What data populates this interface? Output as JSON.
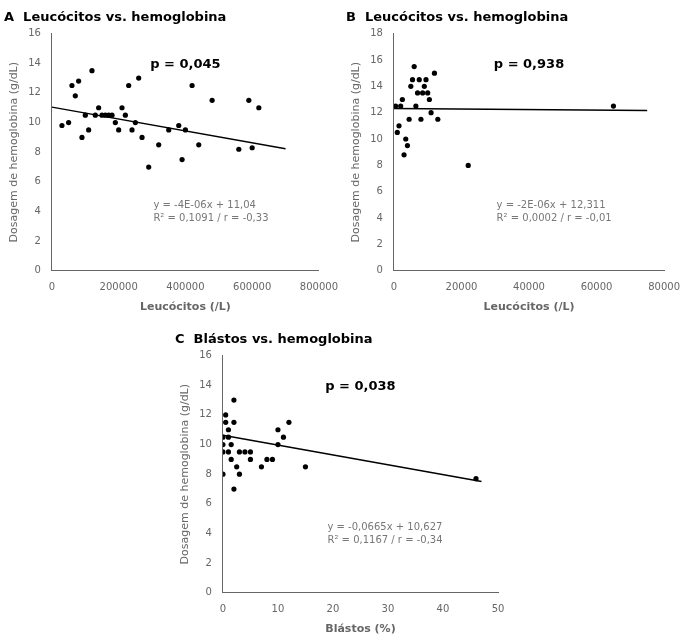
{
  "chart_data": [
    {
      "type": "scatter",
      "title": "A  Leucócitos vs. hemoglobina",
      "x_label": "Leucócitos (/L)",
      "y_label": "Dosagem de hemoglobina (g/dL)",
      "annotations": [
        {
          "text": "p = 0,045",
          "color": "#000000"
        },
        {
          "text": "y = -4E-06x + 11,04",
          "color": "#777777"
        },
        {
          "text": "R² = 0,1091 / r = -0,33",
          "color": "#777777"
        }
      ],
      "series": [
        {
          "type": "scatter",
          "color": "#000000",
          "x": [
            30000,
            50000,
            60000,
            70000,
            80000,
            90000,
            100000,
            110000,
            120000,
            130000,
            140000,
            150000,
            160000,
            170000,
            180000,
            190000,
            200000,
            210000,
            220000,
            230000,
            240000,
            250000,
            260000,
            270000,
            290000,
            320000,
            350000,
            380000,
            390000,
            400000,
            420000,
            440000,
            480000,
            560000,
            590000,
            600000,
            620000
          ],
          "values": [
            9.8,
            10.0,
            12.5,
            11.8,
            12.8,
            9.0,
            10.5,
            9.5,
            13.5,
            10.5,
            11.0,
            10.5,
            10.5,
            10.5,
            10.5,
            10.0,
            9.5,
            11.0,
            10.5,
            12.5,
            9.5,
            10.0,
            13.0,
            9.0,
            7.0,
            8.5,
            9.5,
            9.8,
            7.5,
            9.5,
            12.5,
            8.5,
            11.5,
            8.2,
            11.5,
            8.3,
            11.0
          ]
        },
        {
          "type": "line",
          "color": "#000000",
          "x": [
            0,
            700000
          ],
          "values": [
            11.04,
            8.24
          ]
        }
      ],
      "xlim": [
        0,
        800000
      ],
      "ylim": [
        0,
        16
      ],
      "xticks": [
        0,
        200000,
        400000,
        600000,
        800000
      ],
      "yticks": [
        0,
        2,
        4,
        6,
        8,
        10,
        12,
        14,
        16
      ],
      "grid": false
    },
    {
      "type": "scatter",
      "title": "B  Leucócitos vs. hemoglobina",
      "x_label": "Leucócitos (/L)",
      "y_label": "Dosagem de hemoglobina (g/dL)",
      "annotations": [
        {
          "text": "p = 0,938",
          "color": "#000000"
        },
        {
          "text": "y = -2E-06x + 12,311",
          "color": "#777777"
        },
        {
          "text": "R² = 0,0002 / r = -0,01",
          "color": "#777777"
        }
      ],
      "series": [
        {
          "type": "scatter",
          "color": "#000000",
          "x": [
            500,
            1000,
            1500,
            2000,
            2500,
            3000,
            3500,
            4000,
            4500,
            5000,
            5500,
            6000,
            6500,
            7000,
            7500,
            8000,
            8500,
            9000,
            9500,
            10000,
            10500,
            11000,
            12000,
            13000,
            22000,
            65000
          ],
          "values": [
            12.5,
            10.5,
            11.0,
            12.5,
            13.0,
            8.8,
            10.0,
            9.5,
            11.5,
            14.0,
            14.5,
            15.5,
            12.5,
            13.5,
            14.5,
            11.5,
            13.5,
            14.0,
            14.5,
            13.5,
            13.0,
            12.0,
            15.0,
            11.5,
            8.0,
            12.5
          ]
        },
        {
          "type": "line",
          "color": "#000000",
          "x": [
            0,
            75000
          ],
          "values": [
            12.311,
            12.161
          ]
        }
      ],
      "xlim": [
        0,
        80000
      ],
      "ylim": [
        0,
        18
      ],
      "xticks": [
        0,
        20000,
        40000,
        60000,
        80000
      ],
      "yticks": [
        0,
        2,
        4,
        6,
        8,
        10,
        12,
        14,
        16,
        18
      ],
      "grid": false
    },
    {
      "type": "scatter",
      "title": "C  Blástos vs. hemoglobina",
      "x_label": "Blástos (%)",
      "y_label": "Dosagem de hemoglobina (g/dL)",
      "annotations": [
        {
          "text": "p = 0,038",
          "color": "#000000"
        },
        {
          "text": "y = -0,0665x + 10,627",
          "color": "#777777"
        },
        {
          "text": "R² = 0,1167 / r = -0,34",
          "color": "#777777"
        }
      ],
      "series": [
        {
          "type": "scatter",
          "color": "#000000",
          "x": [
            0,
            0,
            0,
            0,
            0.5,
            0.5,
            1,
            1,
            1,
            1.5,
            1.5,
            2,
            2,
            2,
            2.5,
            3,
            3,
            4,
            5,
            5,
            7,
            8,
            9,
            10,
            10,
            11,
            12,
            15,
            46
          ],
          "values": [
            10.5,
            9.5,
            10.0,
            8.0,
            11.5,
            12.0,
            11.0,
            10.5,
            9.5,
            10.0,
            9.0,
            13.0,
            11.5,
            7.0,
            8.5,
            9.5,
            8.0,
            9.5,
            9.5,
            9.0,
            8.5,
            9.0,
            9.0,
            11.0,
            10.0,
            10.5,
            11.5,
            8.5,
            7.7
          ]
        },
        {
          "type": "line",
          "color": "#000000",
          "x": [
            0,
            47
          ],
          "values": [
            10.627,
            7.5015
          ]
        }
      ],
      "xlim": [
        0,
        50
      ],
      "ylim": [
        0,
        16
      ],
      "xticks": [
        0,
        10,
        20,
        30,
        40,
        50
      ],
      "yticks": [
        0,
        2,
        4,
        6,
        8,
        10,
        12,
        14,
        16
      ],
      "grid": false
    }
  ]
}
